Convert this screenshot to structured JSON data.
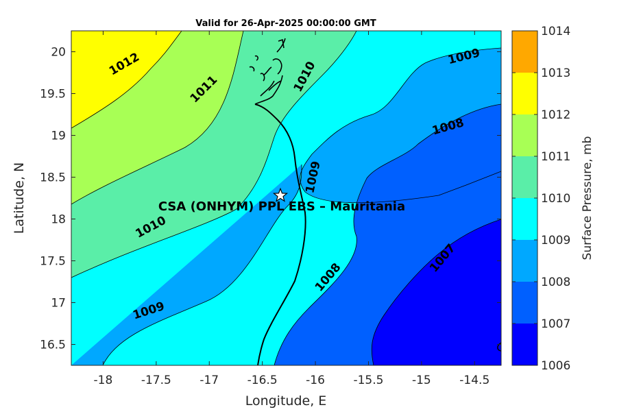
{
  "title": "Valid for 26-Apr-2025 00:00:00 GMT",
  "site_label": "CSA (ONHYM) PPL EBS  – Mauritania",
  "x_axis": {
    "label": "Longitude, E",
    "range": [
      -18.3,
      -14.25
    ],
    "ticks": [
      -18,
      -17.5,
      -17,
      -16.5,
      -16,
      -15.5,
      -15,
      -14.5
    ],
    "tick_labels": [
      "-18",
      "-17.5",
      "-17",
      "-16.5",
      "-16",
      "-15.5",
      "-15",
      "-14.5"
    ]
  },
  "y_axis": {
    "label": "Latitude, N",
    "range": [
      16.25,
      20.25
    ],
    "ticks": [
      16.5,
      17,
      17.5,
      18,
      18.5,
      19,
      19.5,
      20
    ],
    "tick_labels": [
      "16.5",
      "17",
      "17.5",
      "18",
      "18.5",
      "19",
      "19.5",
      "20"
    ]
  },
  "colorbar": {
    "label": "Surface Pressure, mb",
    "levels": [
      1006,
      1007,
      1008,
      1009,
      1010,
      1011,
      1012,
      1013,
      1014
    ],
    "tick_labels": [
      "1006",
      "1007",
      "1008",
      "1009",
      "1010",
      "1011",
      "1012",
      "1013",
      "1014"
    ],
    "colors": [
      "#0000ff",
      "#0060ff",
      "#00a8ff",
      "#00ffff",
      "#5aeea8",
      "#a8ff55",
      "#ffff00",
      "#ffa800",
      "#ff5000"
    ]
  },
  "contour_labels": [
    {
      "text": "1012",
      "lon": -17.8,
      "lat": 19.85,
      "angle": -30
    },
    {
      "text": "1011",
      "lon": -17.05,
      "lat": 19.55,
      "angle": -45
    },
    {
      "text": "1010",
      "lon": -16.1,
      "lat": 19.7,
      "angle": -62
    },
    {
      "text": "1009",
      "lon": -14.6,
      "lat": 19.94,
      "angle": -14
    },
    {
      "text": "1008",
      "lon": -14.75,
      "lat": 19.1,
      "angle": -16
    },
    {
      "text": "1009",
      "lon": -16.02,
      "lat": 18.5,
      "angle": -78
    },
    {
      "text": "1010",
      "lon": -17.55,
      "lat": 17.9,
      "angle": -28
    },
    {
      "text": "1009",
      "lon": -17.57,
      "lat": 16.9,
      "angle": -18
    },
    {
      "text": "1008",
      "lon": -15.88,
      "lat": 17.3,
      "angle": -50
    },
    {
      "text": "1007",
      "lon": -14.8,
      "lat": 17.53,
      "angle": -50
    }
  ],
  "site_marker": {
    "lon": -16.33,
    "lat": 18.28
  }
}
